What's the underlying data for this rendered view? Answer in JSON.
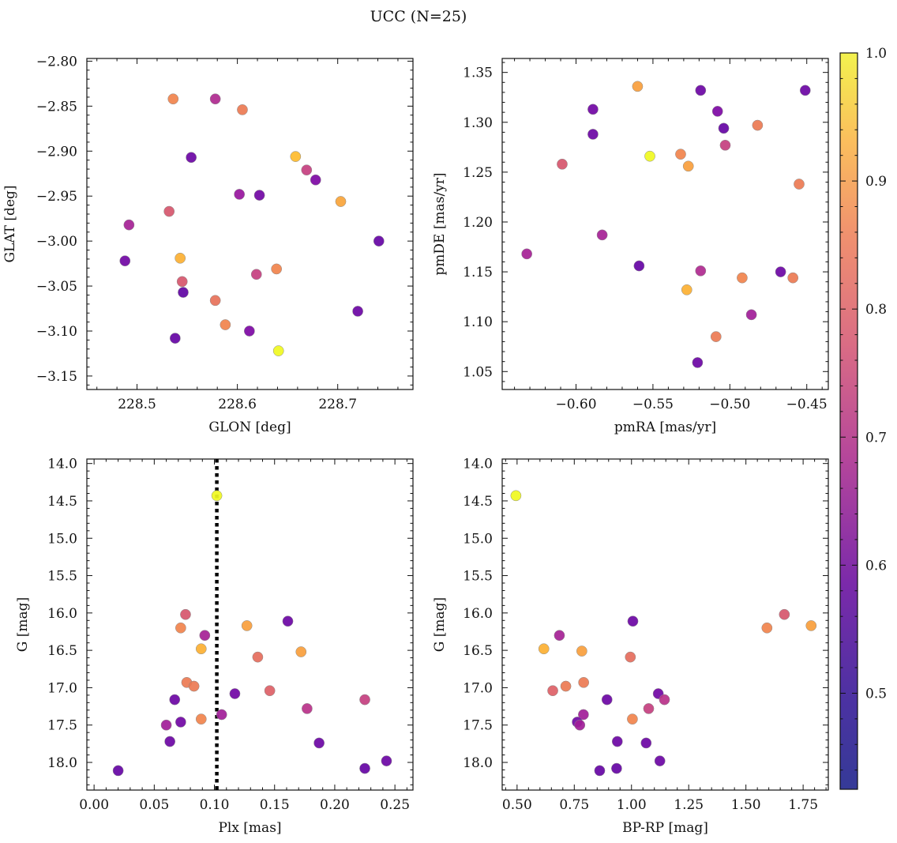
{
  "suptitle": "UCC (N=25)",
  "colorbar": {
    "min": 0.425,
    "max": 1.0,
    "ticks": [
      0.5,
      0.6,
      0.7,
      0.8,
      0.9,
      1.0
    ],
    "tick_labels": [
      "0.5",
      "0.6",
      "0.7",
      "0.8",
      "0.9",
      "1.0"
    ],
    "colormap": "plasma"
  },
  "chart_data": [
    {
      "type": "scatter",
      "xlabel": "GLON [deg]",
      "ylabel": "GLAT [deg]",
      "xlim": [
        228.45,
        228.775
      ],
      "ylim": [
        -3.165,
        -2.797
      ],
      "xticks": [
        228.5,
        228.6,
        228.7
      ],
      "xtick_labels": [
        "228.5",
        "228.6",
        "228.7"
      ],
      "yticks": [
        -3.15,
        -3.1,
        -3.05,
        -3.0,
        -2.95,
        -2.9,
        -2.85,
        -2.8
      ],
      "ytick_labels": [
        "−3.15",
        "−3.10",
        "−3.05",
        "−3.00",
        "−2.95",
        "−2.90",
        "−2.85",
        "−2.80"
      ],
      "points": [
        {
          "x": 228.536,
          "y": -2.842,
          "c": 0.8
        },
        {
          "x": 228.578,
          "y": -2.842,
          "c": 0.6
        },
        {
          "x": 228.605,
          "y": -2.854,
          "c": 0.78
        },
        {
          "x": 228.554,
          "y": -2.907,
          "c": 0.47
        },
        {
          "x": 228.658,
          "y": -2.906,
          "c": 0.9
        },
        {
          "x": 228.669,
          "y": -2.921,
          "c": 0.65
        },
        {
          "x": 228.678,
          "y": -2.932,
          "c": 0.5
        },
        {
          "x": 228.602,
          "y": -2.948,
          "c": 0.55
        },
        {
          "x": 228.622,
          "y": -2.949,
          "c": 0.48
        },
        {
          "x": 228.703,
          "y": -2.956,
          "c": 0.86
        },
        {
          "x": 228.532,
          "y": -2.967,
          "c": 0.7
        },
        {
          "x": 228.492,
          "y": -2.982,
          "c": 0.58
        },
        {
          "x": 228.741,
          "y": -3.0,
          "c": 0.46
        },
        {
          "x": 228.488,
          "y": -3.022,
          "c": 0.48
        },
        {
          "x": 228.543,
          "y": -3.019,
          "c": 0.88
        },
        {
          "x": 228.639,
          "y": -3.031,
          "c": 0.8
        },
        {
          "x": 228.619,
          "y": -3.037,
          "c": 0.65
        },
        {
          "x": 228.545,
          "y": -3.045,
          "c": 0.7
        },
        {
          "x": 228.546,
          "y": -3.057,
          "c": 0.45
        },
        {
          "x": 228.578,
          "y": -3.066,
          "c": 0.76
        },
        {
          "x": 228.72,
          "y": -3.078,
          "c": 0.47
        },
        {
          "x": 228.588,
          "y": -3.093,
          "c": 0.8
        },
        {
          "x": 228.612,
          "y": -3.1,
          "c": 0.5
        },
        {
          "x": 228.538,
          "y": -3.108,
          "c": 0.46
        },
        {
          "x": 228.641,
          "y": -3.122,
          "c": 1.0
        }
      ]
    },
    {
      "type": "scatter",
      "xlabel": "pmRA [mas/yr]",
      "ylabel": "pmDE [mas/yr]",
      "xlim": [
        -0.648,
        -0.436
      ],
      "ylim": [
        1.032,
        1.364
      ],
      "xticks": [
        -0.6,
        -0.55,
        -0.5,
        -0.45
      ],
      "xtick_labels": [
        "−0.60",
        "−0.55",
        "−0.50",
        "−0.45"
      ],
      "yticks": [
        1.05,
        1.1,
        1.15,
        1.2,
        1.25,
        1.3,
        1.35
      ],
      "ytick_labels": [
        "1.05",
        "1.10",
        "1.15",
        "1.20",
        "1.25",
        "1.30",
        "1.35"
      ],
      "points": [
        {
          "x": -0.56,
          "y": 1.336,
          "c": 0.85
        },
        {
          "x": -0.519,
          "y": 1.332,
          "c": 0.47
        },
        {
          "x": -0.451,
          "y": 1.332,
          "c": 0.47
        },
        {
          "x": -0.589,
          "y": 1.313,
          "c": 0.48
        },
        {
          "x": -0.508,
          "y": 1.311,
          "c": 0.5
        },
        {
          "x": -0.482,
          "y": 1.297,
          "c": 0.78
        },
        {
          "x": -0.504,
          "y": 1.294,
          "c": 0.46
        },
        {
          "x": -0.589,
          "y": 1.288,
          "c": 0.47
        },
        {
          "x": -0.503,
          "y": 1.277,
          "c": 0.65
        },
        {
          "x": -0.532,
          "y": 1.268,
          "c": 0.8
        },
        {
          "x": -0.552,
          "y": 1.266,
          "c": 1.0
        },
        {
          "x": -0.527,
          "y": 1.256,
          "c": 0.85
        },
        {
          "x": -0.609,
          "y": 1.258,
          "c": 0.7
        },
        {
          "x": -0.455,
          "y": 1.238,
          "c": 0.78
        },
        {
          "x": -0.583,
          "y": 1.187,
          "c": 0.58
        },
        {
          "x": -0.632,
          "y": 1.168,
          "c": 0.58
        },
        {
          "x": -0.559,
          "y": 1.156,
          "c": 0.46
        },
        {
          "x": -0.519,
          "y": 1.151,
          "c": 0.6
        },
        {
          "x": -0.467,
          "y": 1.15,
          "c": 0.47
        },
        {
          "x": -0.492,
          "y": 1.144,
          "c": 0.8
        },
        {
          "x": -0.459,
          "y": 1.144,
          "c": 0.78
        },
        {
          "x": -0.528,
          "y": 1.132,
          "c": 0.88
        },
        {
          "x": -0.486,
          "y": 1.107,
          "c": 0.57
        },
        {
          "x": -0.509,
          "y": 1.085,
          "c": 0.78
        },
        {
          "x": -0.521,
          "y": 1.059,
          "c": 0.47
        }
      ]
    },
    {
      "type": "scatter",
      "xlabel": "Plx [mas]",
      "ylabel": "G [mag]",
      "xlim": [
        -0.006,
        0.265
      ],
      "ylim": [
        18.37,
        13.94
      ],
      "yinverted": true,
      "xticks": [
        0.0,
        0.05,
        0.1,
        0.15,
        0.2,
        0.25
      ],
      "xtick_labels": [
        "0.00",
        "0.05",
        "0.10",
        "0.15",
        "0.20",
        "0.25"
      ],
      "yticks": [
        14.0,
        14.5,
        15.0,
        15.5,
        16.0,
        16.5,
        17.0,
        17.5,
        18.0
      ],
      "ytick_labels": [
        "14.0",
        "14.5",
        "15.0",
        "15.5",
        "16.0",
        "16.5",
        "17.0",
        "17.5",
        "18.0"
      ],
      "vline": 0.102,
      "points": [
        {
          "x": 0.102,
          "y": 14.43,
          "c": 1.0
        },
        {
          "x": 0.076,
          "y": 16.02,
          "c": 0.7
        },
        {
          "x": 0.161,
          "y": 16.11,
          "c": 0.47
        },
        {
          "x": 0.127,
          "y": 16.17,
          "c": 0.85
        },
        {
          "x": 0.072,
          "y": 16.2,
          "c": 0.8
        },
        {
          "x": 0.092,
          "y": 16.3,
          "c": 0.58
        },
        {
          "x": 0.089,
          "y": 16.48,
          "c": 0.88
        },
        {
          "x": 0.172,
          "y": 16.52,
          "c": 0.85
        },
        {
          "x": 0.136,
          "y": 16.59,
          "c": 0.75
        },
        {
          "x": 0.077,
          "y": 16.93,
          "c": 0.78
        },
        {
          "x": 0.083,
          "y": 16.98,
          "c": 0.78
        },
        {
          "x": 0.146,
          "y": 17.04,
          "c": 0.72
        },
        {
          "x": 0.117,
          "y": 17.08,
          "c": 0.48
        },
        {
          "x": 0.067,
          "y": 17.16,
          "c": 0.47
        },
        {
          "x": 0.225,
          "y": 17.16,
          "c": 0.65
        },
        {
          "x": 0.177,
          "y": 17.28,
          "c": 0.62
        },
        {
          "x": 0.106,
          "y": 17.36,
          "c": 0.57
        },
        {
          "x": 0.089,
          "y": 17.42,
          "c": 0.8
        },
        {
          "x": 0.072,
          "y": 17.46,
          "c": 0.48
        },
        {
          "x": 0.06,
          "y": 17.5,
          "c": 0.57
        },
        {
          "x": 0.063,
          "y": 17.72,
          "c": 0.47
        },
        {
          "x": 0.187,
          "y": 17.74,
          "c": 0.47
        },
        {
          "x": 0.243,
          "y": 17.98,
          "c": 0.47
        },
        {
          "x": 0.225,
          "y": 18.08,
          "c": 0.46
        },
        {
          "x": 0.02,
          "y": 18.11,
          "c": 0.46
        }
      ]
    },
    {
      "type": "scatter",
      "xlabel": "BP-RP [mag]",
      "ylabel": "G [mag]",
      "xlim": [
        0.435,
        1.86
      ],
      "ylim": [
        18.37,
        13.94
      ],
      "yinverted": true,
      "xticks": [
        0.5,
        0.75,
        1.0,
        1.25,
        1.5,
        1.75
      ],
      "xtick_labels": [
        "0.50",
        "0.75",
        "1.00",
        "1.25",
        "1.50",
        "1.75"
      ],
      "yticks": [
        14.0,
        14.5,
        15.0,
        15.5,
        16.0,
        16.5,
        17.0,
        17.5,
        18.0
      ],
      "ytick_labels": [
        "14.0",
        "14.5",
        "15.0",
        "15.5",
        "16.0",
        "16.5",
        "17.0",
        "17.5",
        "18.0"
      ],
      "points": [
        {
          "x": 0.495,
          "y": 14.43,
          "c": 1.0
        },
        {
          "x": 1.668,
          "y": 16.02,
          "c": 0.7
        },
        {
          "x": 1.006,
          "y": 16.11,
          "c": 0.47
        },
        {
          "x": 1.785,
          "y": 16.17,
          "c": 0.85
        },
        {
          "x": 1.592,
          "y": 16.2,
          "c": 0.8
        },
        {
          "x": 0.685,
          "y": 16.3,
          "c": 0.58
        },
        {
          "x": 0.617,
          "y": 16.48,
          "c": 0.88
        },
        {
          "x": 0.783,
          "y": 16.51,
          "c": 0.85
        },
        {
          "x": 0.995,
          "y": 16.59,
          "c": 0.75
        },
        {
          "x": 0.791,
          "y": 16.93,
          "c": 0.78
        },
        {
          "x": 0.713,
          "y": 16.98,
          "c": 0.78
        },
        {
          "x": 0.656,
          "y": 17.04,
          "c": 0.72
        },
        {
          "x": 1.117,
          "y": 17.08,
          "c": 0.48
        },
        {
          "x": 0.893,
          "y": 17.16,
          "c": 0.47
        },
        {
          "x": 1.144,
          "y": 17.16,
          "c": 0.62
        },
        {
          "x": 1.075,
          "y": 17.28,
          "c": 0.65
        },
        {
          "x": 0.79,
          "y": 17.36,
          "c": 0.57
        },
        {
          "x": 1.004,
          "y": 17.42,
          "c": 0.8
        },
        {
          "x": 0.763,
          "y": 17.46,
          "c": 0.48
        },
        {
          "x": 0.774,
          "y": 17.5,
          "c": 0.57
        },
        {
          "x": 0.938,
          "y": 17.72,
          "c": 0.47
        },
        {
          "x": 1.064,
          "y": 17.74,
          "c": 0.47
        },
        {
          "x": 1.124,
          "y": 17.98,
          "c": 0.47
        },
        {
          "x": 0.935,
          "y": 18.08,
          "c": 0.46
        },
        {
          "x": 0.861,
          "y": 18.11,
          "c": 0.46
        }
      ]
    }
  ]
}
